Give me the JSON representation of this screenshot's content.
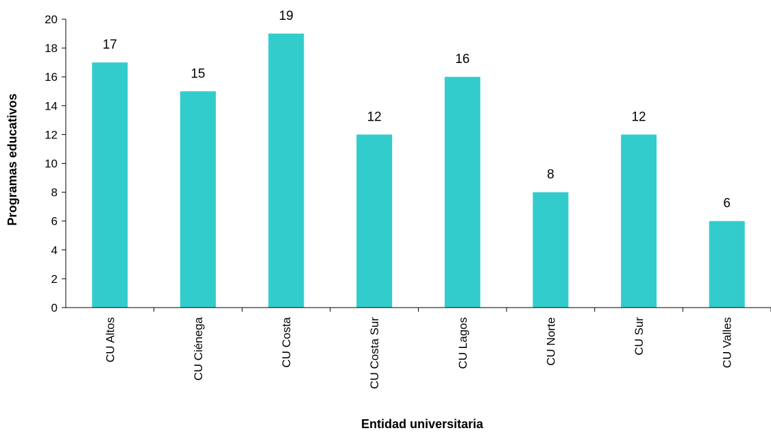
{
  "chart_data": {
    "type": "bar",
    "title": "",
    "xlabel": "Entidad universitaria",
    "ylabel": "Programas educativos",
    "categories": [
      "CU Altos",
      "CU Ciénega",
      "CU Costa",
      "CU Costa Sur",
      "CU Lagos",
      "CU Norte",
      "CU Sur",
      "CU Valles"
    ],
    "values": [
      17,
      15,
      19,
      12,
      16,
      8,
      12,
      6
    ],
    "ylim": [
      0,
      20
    ],
    "yticks": [
      0,
      2,
      4,
      6,
      8,
      10,
      12,
      14,
      16,
      18,
      20
    ],
    "grid": false,
    "legend": "none",
    "data_labels": true,
    "bar_color": "#33CCCC",
    "axis_color": "#000000"
  }
}
